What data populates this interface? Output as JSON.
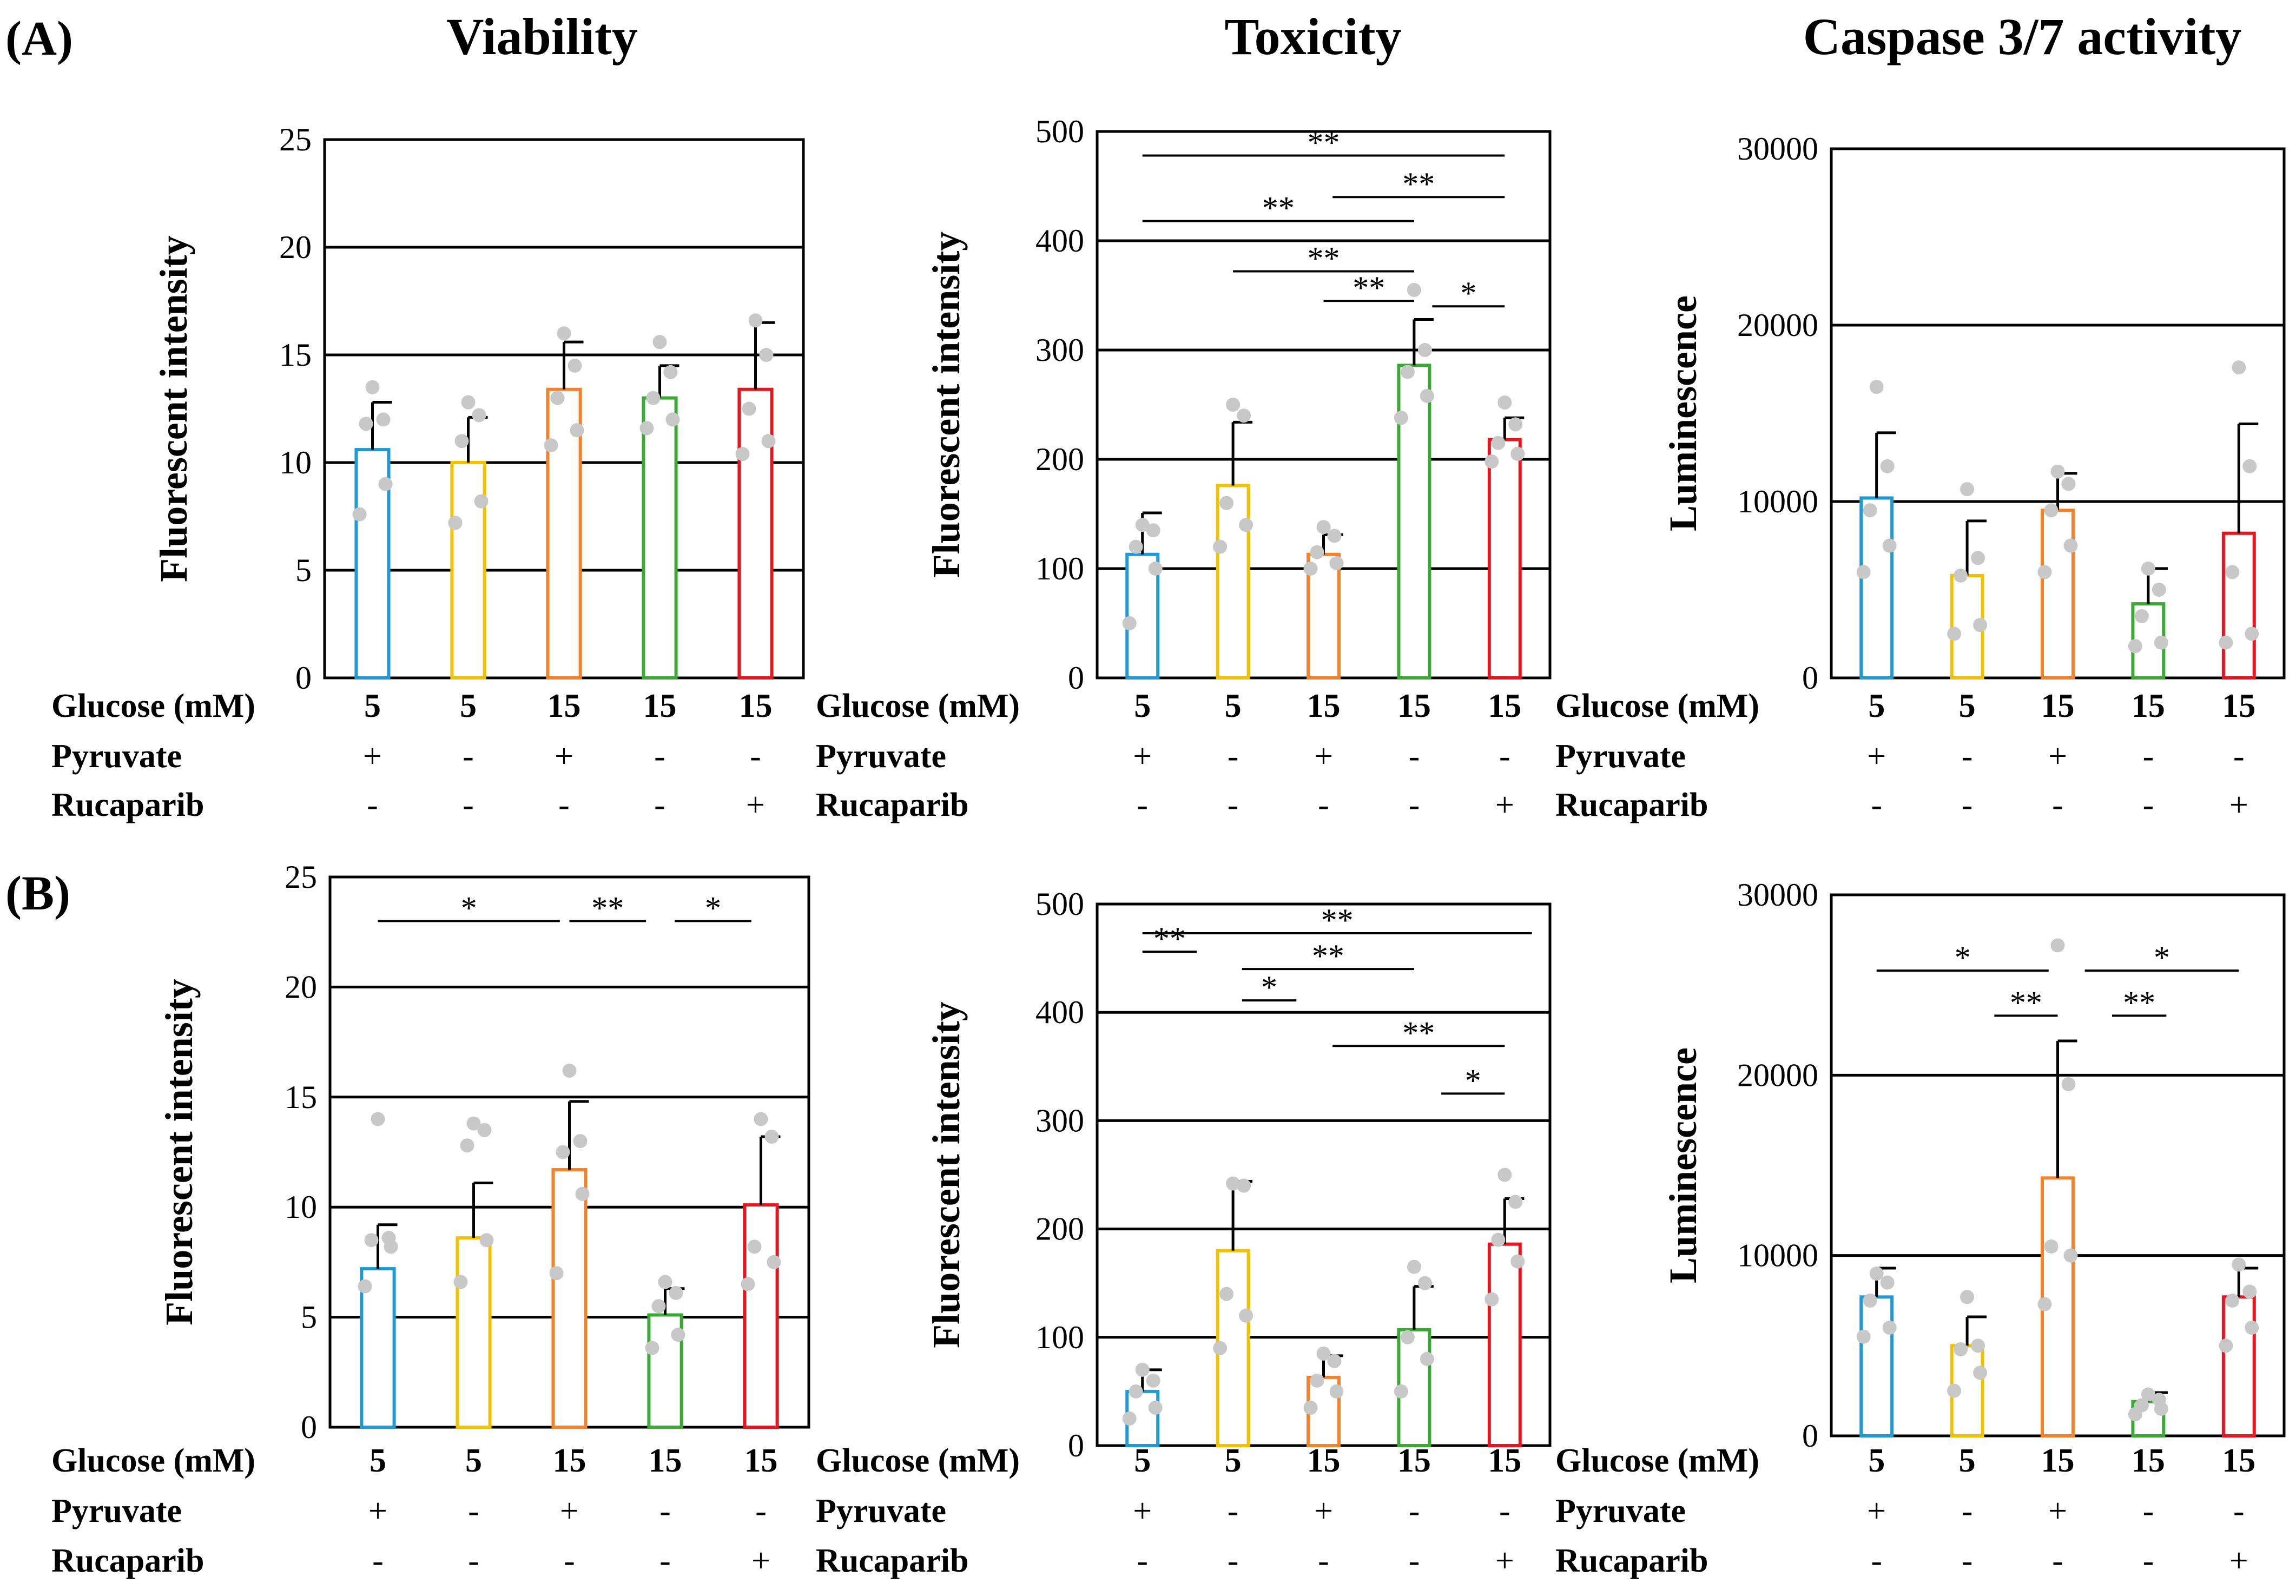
{
  "figure": {
    "panel_labels": [
      "(A)",
      "(B)"
    ],
    "titles": [
      "Viability",
      "Toxicity",
      "Caspase 3/7 activity"
    ],
    "condition_labels": [
      "Glucose (mM)",
      "Pyruvate",
      "Rucaparib"
    ],
    "conditions": {
      "glucose": [
        "5",
        "5",
        "15",
        "15",
        "15"
      ],
      "pyruvate": [
        "+",
        "-",
        "+",
        "-",
        "-"
      ],
      "rucaparib": [
        "-",
        "-",
        "-",
        "-",
        "+"
      ]
    },
    "bar_colors": [
      "#1f9ad6",
      "#f2c200",
      "#f5822a",
      "#3aaa35",
      "#e8141e"
    ],
    "point_color": "#c8c8c8"
  },
  "chart_data": [
    {
      "type": "bar",
      "panel": "A",
      "title": "Viability",
      "ylabel": "Fluorescent intensity",
      "ylim": [
        0,
        25
      ],
      "yticks": [
        0,
        5,
        10,
        15,
        20,
        25
      ],
      "grid": true,
      "values": [
        10.6,
        10.0,
        13.4,
        13.0,
        13.4
      ],
      "errors": [
        2.2,
        2.1,
        2.2,
        1.5,
        3.1
      ],
      "points": [
        [
          7.6,
          9,
          11.8,
          12,
          13.5
        ],
        [
          7.2,
          8.2,
          11,
          12.2,
          12.8
        ],
        [
          10.8,
          11.5,
          13,
          14.5,
          16
        ],
        [
          11.6,
          12,
          13,
          14.2,
          15.6
        ],
        [
          10.4,
          11,
          12.5,
          15,
          16.6
        ]
      ],
      "significance": []
    },
    {
      "type": "bar",
      "panel": "A",
      "title": "Toxicity",
      "ylabel": "Fluorescent intensity",
      "ylim": [
        0,
        500
      ],
      "yticks": [
        0,
        100,
        200,
        300,
        400,
        500
      ],
      "grid": true,
      "values": [
        113,
        176,
        113,
        286,
        218
      ],
      "errors": [
        38,
        58,
        18,
        42,
        20
      ],
      "points": [
        [
          50,
          100,
          120,
          135,
          140
        ],
        [
          120,
          140,
          160,
          240,
          250
        ],
        [
          100,
          105,
          115,
          130,
          138
        ],
        [
          238,
          258,
          280,
          300,
          355
        ],
        [
          198,
          205,
          215,
          232,
          252
        ]
      ],
      "significance": [
        {
          "from": 0,
          "to": 4,
          "label": "**",
          "level": 478
        },
        {
          "from": 2.1,
          "to": 4,
          "label": "**",
          "level": 440
        },
        {
          "from": 0,
          "to": 3,
          "label": "**",
          "level": 418
        },
        {
          "from": 1,
          "to": 3,
          "label": "**",
          "level": 372
        },
        {
          "from": 2,
          "to": 3,
          "label": "**",
          "level": 345
        },
        {
          "from": 3.2,
          "to": 4,
          "label": "*",
          "level": 340
        }
      ]
    },
    {
      "type": "bar",
      "panel": "A",
      "title": "Caspase 3/7 activity",
      "ylabel": "Luminescence",
      "ylim": [
        0,
        30000
      ],
      "yticks": [
        0,
        10000,
        20000,
        30000
      ],
      "grid": true,
      "values": [
        10200,
        5800,
        9500,
        4200,
        8200
      ],
      "errors": [
        3700,
        3100,
        2100,
        2000,
        6200
      ],
      "points": [
        [
          6000,
          7500,
          9500,
          12000,
          16500
        ],
        [
          2500,
          3000,
          5800,
          6800,
          10700
        ],
        [
          6000,
          7500,
          9500,
          11000,
          11700
        ],
        [
          1800,
          2000,
          3500,
          5000,
          6200
        ],
        [
          2000,
          2500,
          6000,
          12000,
          17600
        ]
      ],
      "significance": []
    },
    {
      "type": "bar",
      "panel": "B",
      "title": "",
      "ylabel": "Fluorescent intensity",
      "ylim": [
        0,
        25
      ],
      "yticks": [
        0,
        5,
        10,
        15,
        20,
        25
      ],
      "grid": true,
      "values": [
        7.2,
        8.6,
        11.7,
        5.1,
        10.1
      ],
      "errors": [
        2.0,
        2.5,
        3.1,
        1.2,
        3.1
      ],
      "points": [
        [
          6.4,
          8.2,
          8.5,
          8.6,
          14
        ],
        [
          6.6,
          8.5,
          12.8,
          13.5,
          13.8
        ],
        [
          7,
          10.6,
          12.5,
          13,
          16.2
        ],
        [
          3.6,
          4.2,
          5.5,
          6.1,
          6.6
        ],
        [
          6.5,
          7.5,
          8.2,
          13.2,
          14
        ]
      ],
      "significance": [
        {
          "from": 0,
          "to": 1.9,
          "label": "*",
          "level": 23
        },
        {
          "from": 2,
          "to": 2.8,
          "label": "**",
          "level": 23
        },
        {
          "from": 3.1,
          "to": 3.9,
          "label": "*",
          "level": 23
        }
      ]
    },
    {
      "type": "bar",
      "panel": "B",
      "title": "",
      "ylabel": "Fluorescent intensity",
      "ylim": [
        0,
        500
      ],
      "yticks": [
        0,
        100,
        200,
        300,
        400,
        500
      ],
      "grid": true,
      "values": [
        50,
        180,
        63,
        107,
        186
      ],
      "errors": [
        20,
        64,
        20,
        40,
        42
      ],
      "points": [
        [
          25,
          35,
          50,
          60,
          70
        ],
        [
          90,
          120,
          140,
          240,
          242
        ],
        [
          35,
          50,
          60,
          78,
          85
        ],
        [
          50,
          80,
          100,
          150,
          165
        ],
        [
          135,
          170,
          190,
          225,
          250
        ]
      ],
      "significance": [
        {
          "from": 0,
          "to": 4.3,
          "label": "**",
          "level": 473
        },
        {
          "from": 0,
          "to": 0.6,
          "label": "**",
          "level": 456
        },
        {
          "from": 1.1,
          "to": 3,
          "label": "**",
          "level": 440
        },
        {
          "from": 1.1,
          "to": 1.7,
          "label": "*",
          "level": 411
        },
        {
          "from": 2.1,
          "to": 4,
          "label": "**",
          "level": 369
        },
        {
          "from": 3.3,
          "to": 4,
          "label": "*",
          "level": 325
        }
      ]
    },
    {
      "type": "bar",
      "panel": "B",
      "title": "",
      "ylabel": "Luminescence",
      "ylim": [
        0,
        30000
      ],
      "yticks": [
        0,
        10000,
        20000,
        30000
      ],
      "grid": true,
      "values": [
        7700,
        5000,
        14300,
        1900,
        7700
      ],
      "errors": [
        1600,
        1600,
        7600,
        500,
        1600
      ],
      "points": [
        [
          5500,
          6000,
          7500,
          8500,
          9000
        ],
        [
          2500,
          3500,
          4800,
          5000,
          7700
        ],
        [
          7300,
          10000,
          10500,
          19500,
          27200
        ],
        [
          1200,
          1500,
          1700,
          2000,
          2300
        ],
        [
          5000,
          6000,
          7500,
          8000,
          9500
        ]
      ],
      "significance": [
        {
          "from": 0,
          "to": 1.9,
          "label": "*",
          "level": 25800
        },
        {
          "from": 1.3,
          "to": 2,
          "label": "**",
          "level": 23300
        },
        {
          "from": 2.3,
          "to": 4,
          "label": "*",
          "level": 25800
        },
        {
          "from": 2.6,
          "to": 3.2,
          "label": "**",
          "level": 23300
        }
      ]
    }
  ]
}
